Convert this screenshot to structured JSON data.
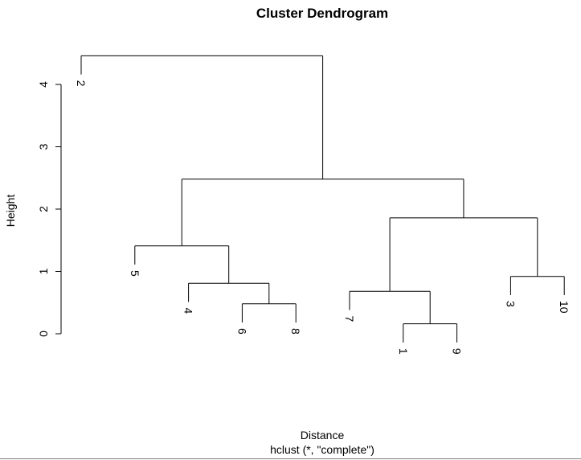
{
  "chart_data": {
    "type": "dendrogram",
    "title": "Cluster Dendrogram",
    "xlabel": "Distance",
    "sub": "hclust (*, \"complete\")",
    "ylabel": "Height",
    "ylim": [
      0,
      4.6
    ],
    "yticks": [
      0,
      1,
      2,
      3,
      4
    ],
    "leaves": [
      "2",
      "5",
      "4",
      "6",
      "8",
      "7",
      "1",
      "9",
      "3",
      "10"
    ],
    "hang_offset": 0.3,
    "merges": [
      {
        "left": "6",
        "right": "8",
        "height": 0.48
      },
      {
        "left": "1",
        "right": "9",
        "height": 0.16
      },
      {
        "left": "3",
        "right": "10",
        "height": 0.92
      },
      {
        "left": "4",
        "right": "6,8",
        "height": 0.81
      },
      {
        "left": "7",
        "right": "1,9",
        "height": 0.68
      },
      {
        "left": "5",
        "right": "4,6,8",
        "height": 1.41
      },
      {
        "left": "7,1,9",
        "right": "3,10",
        "height": 1.86
      },
      {
        "left": "5,4,6,8",
        "right": "7,1,9,3,10",
        "height": 2.48
      },
      {
        "left": "2",
        "right": "5,4,6,8,7,1,9,3,10",
        "height": 4.46
      }
    ]
  }
}
